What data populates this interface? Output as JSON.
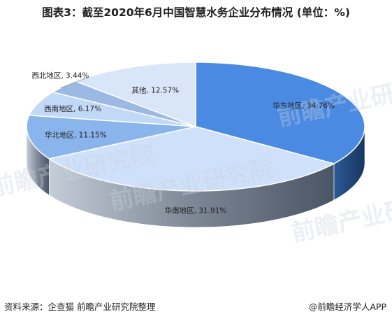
{
  "footer": {
    "source": "资料来源：企查猫 前瞻产业研究院整理",
    "brand": "@前瞻经济学人APP"
  },
  "watermark": {
    "text": "前瞻产业研究院"
  },
  "colors": {
    "华东地区": "#4a8ae2",
    "华南地区": "#cfe0fa",
    "华北地区": "#8ab5ec",
    "西南地区": "#c2d8f7",
    "西北地区": "#9bb9e3",
    "其他": "#d9e6f9"
  },
  "chart_data": {
    "type": "pie",
    "title": "图表3：截至2020年6月中国智慧水务企业分布情况 (单位：%)",
    "unit": "%",
    "slices": [
      {
        "name": "华东地区",
        "value": 34.76,
        "label": "华东地区, 34.76%"
      },
      {
        "name": "华南地区",
        "value": 31.91,
        "label": "华南地区, 31.91%"
      },
      {
        "name": "华北地区",
        "value": 11.15,
        "label": "华北地区, 11.15%"
      },
      {
        "name": "西南地区",
        "value": 6.17,
        "label": "西南地区, 6.17%"
      },
      {
        "name": "西北地区",
        "value": 3.44,
        "label": "西北地区, 3.44%"
      },
      {
        "name": "其他",
        "value": 12.57,
        "label": "其他, 12.57%"
      }
    ]
  }
}
